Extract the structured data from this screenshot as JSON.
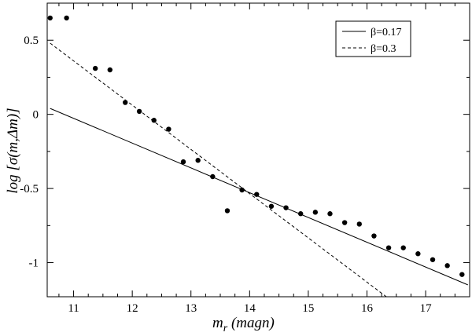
{
  "chart_data": {
    "type": "scatter",
    "title": "",
    "xlabel_main": "m",
    "xlabel_sub": "r",
    "xlabel_rest": " (magn)",
    "ylabel": "log [σ(m,Δm)]",
    "xlim": [
      10.55,
      17.75
    ],
    "ylim": [
      -1.23,
      0.75
    ],
    "x_ticks": [
      11,
      12,
      13,
      14,
      15,
      16,
      17
    ],
    "x_tick_labels": [
      "11",
      "12",
      "13",
      "14",
      "15",
      "16",
      "17"
    ],
    "y_ticks": [
      0.5,
      0,
      -0.5,
      -1
    ],
    "y_tick_labels": [
      "0.5",
      "0",
      "-0.5",
      "-1"
    ],
    "grid": false,
    "legend_position": "top-right",
    "points": {
      "x": [
        10.6,
        10.88,
        11.37,
        11.62,
        11.88,
        12.12,
        12.37,
        12.62,
        12.87,
        13.12,
        13.37,
        13.62,
        13.87,
        14.12,
        14.37,
        14.62,
        14.87,
        15.12,
        15.37,
        15.62,
        15.87,
        16.12,
        16.37,
        16.62,
        16.87,
        17.12,
        17.37,
        17.62
      ],
      "y": [
        0.65,
        0.65,
        0.31,
        0.3,
        0.08,
        0.02,
        -0.04,
        -0.1,
        -0.32,
        -0.31,
        -0.42,
        -0.65,
        -0.51,
        -0.54,
        -0.62,
        -0.63,
        -0.67,
        -0.66,
        -0.67,
        -0.73,
        -0.74,
        -0.82,
        -0.9,
        -0.9,
        -0.94,
        -0.98,
        -1.02,
        -1.08
      ]
    },
    "series": [
      {
        "name": "β=0.17",
        "style": "solid",
        "x": [
          10.6,
          17.72
        ],
        "y": [
          0.04,
          -1.15
        ]
      },
      {
        "name": "β=0.3",
        "style": "dashed",
        "x": [
          10.6,
          16.33
        ],
        "y": [
          0.48,
          -1.23
        ]
      }
    ],
    "colors": {
      "line": "#000000",
      "points": "#000000",
      "background": "#ffffff"
    }
  }
}
